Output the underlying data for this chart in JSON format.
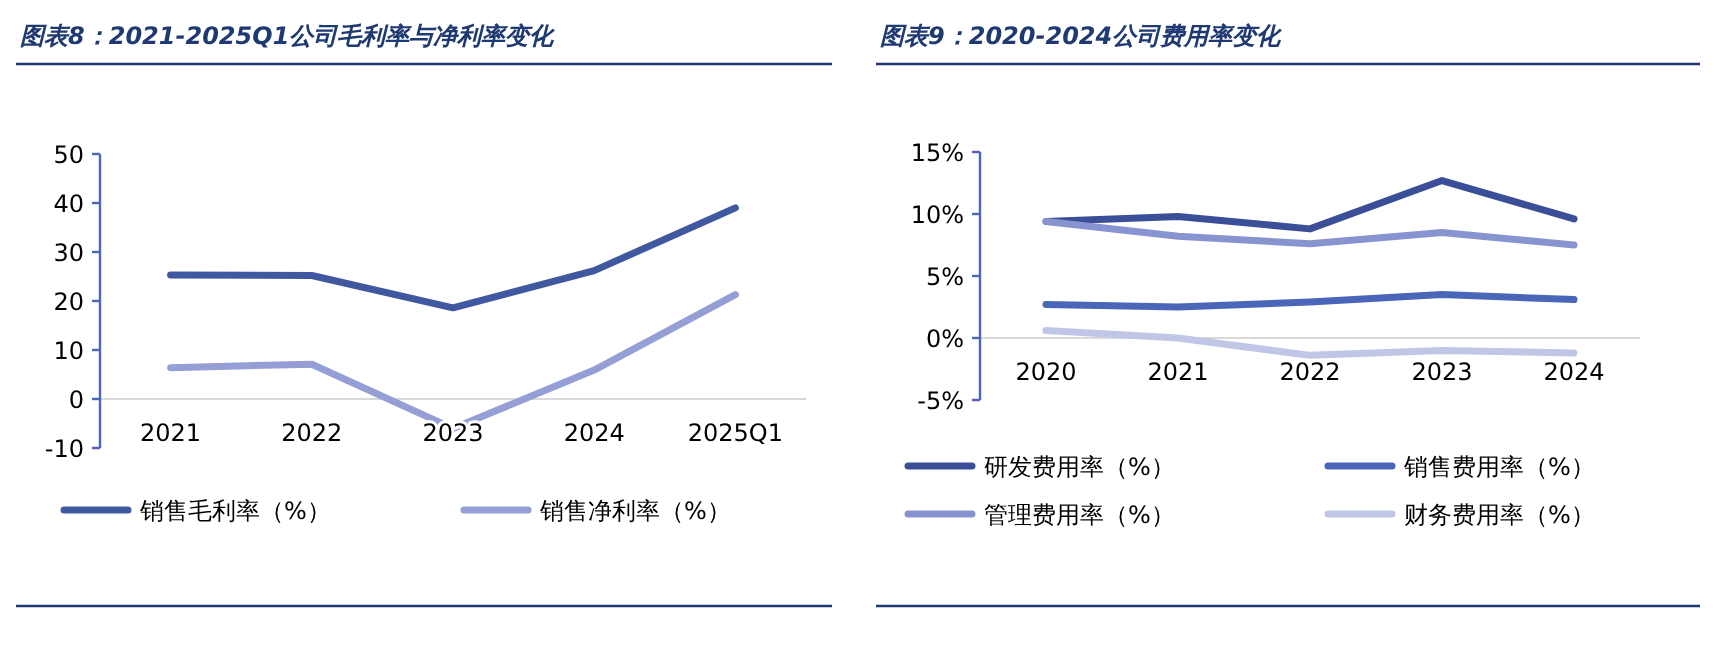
{
  "chart_data": [
    {
      "type": "line",
      "title": "图表8：2021-2025Q1公司毛利率与净利率变化",
      "categories": [
        "2021",
        "2022",
        "2023",
        "2024",
        "2025Q1"
      ],
      "series": [
        {
          "name": "销售毛利率（%）",
          "color": "#4058a0",
          "values": [
            25.3,
            25.2,
            18.6,
            26.2,
            39.0
          ]
        },
        {
          "name": "销售净利率（%）",
          "color": "#959fd6",
          "values": [
            6.4,
            7.1,
            -6.0,
            5.9,
            21.3
          ]
        }
      ],
      "ylim": [
        -10,
        50
      ],
      "yticks": [
        -10,
        0,
        10,
        20,
        30,
        40,
        50
      ],
      "grid": false,
      "legend": "bottom",
      "marker": "none",
      "line_style": "solid"
    },
    {
      "type": "line",
      "title": "图表9：2020-2024公司费用率变化",
      "categories": [
        "2020",
        "2021",
        "2022",
        "2023",
        "2024"
      ],
      "series": [
        {
          "name": "研发费用率（%）",
          "color": "#3b4e98",
          "values": [
            9.4,
            9.8,
            8.8,
            12.7,
            9.6
          ]
        },
        {
          "name": "销售费用率（%）",
          "color": "#4a66b8",
          "values": [
            2.7,
            2.5,
            2.9,
            3.5,
            3.1
          ]
        },
        {
          "name": "管理费用率（%）",
          "color": "#8894cf",
          "values": [
            9.4,
            8.2,
            7.6,
            8.5,
            7.5
          ]
        },
        {
          "name": "财务费用率（%）",
          "color": "#c0c6e6",
          "values": [
            0.6,
            0.0,
            -1.4,
            -1.0,
            -1.2
          ]
        }
      ],
      "ylim": [
        -5,
        15
      ],
      "yticks": [
        {
          "value": -5,
          "label": "-5%"
        },
        {
          "value": 0,
          "label": "0%"
        },
        {
          "value": 5,
          "label": "5%"
        },
        {
          "value": 10,
          "label": "10%"
        },
        {
          "value": 15,
          "label": "15%"
        }
      ],
      "grid": false,
      "legend": "bottom",
      "marker": "none",
      "line_style": "solid"
    }
  ]
}
